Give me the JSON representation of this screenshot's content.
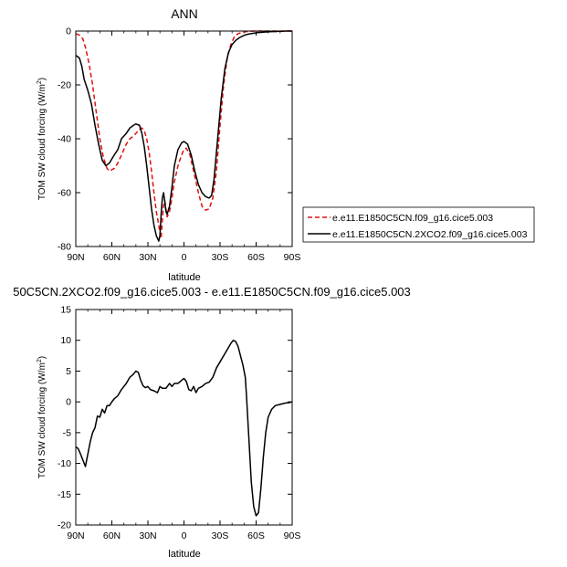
{
  "chart_data": [
    {
      "type": "line",
      "title": "ANN",
      "xlabel": "latitude",
      "ylabel": "TOM SW cloud forcing (W/m",
      "ylabel_sup": "2",
      "ylabel_close": ")",
      "xlim": [
        90,
        -90
      ],
      "ylim": [
        -80,
        0
      ],
      "xticks": [
        90,
        60,
        30,
        0,
        -30,
        -60,
        -90
      ],
      "xtick_labels": [
        "90N",
        "60N",
        "30N",
        "0",
        "30S",
        "60S",
        "90S"
      ],
      "yticks": [
        0,
        -20,
        -40,
        -60,
        -80
      ],
      "ytick_labels": [
        "0",
        "-20",
        "-40",
        "-60",
        "-80"
      ],
      "legend_position": "right",
      "series": [
        {
          "name": "e.e11.E1850C5CN.f09_g16.cice5.003",
          "color": "#e01010",
          "dash": "dashed",
          "points": [
            [
              90,
              -1
            ],
            [
              87,
              -1.5
            ],
            [
              84,
              -3
            ],
            [
              82,
              -6
            ],
            [
              79,
              -12
            ],
            [
              76,
              -20
            ],
            [
              73,
              -30
            ],
            [
              70,
              -40
            ],
            [
              67,
              -47
            ],
            [
              64,
              -51
            ],
            [
              62,
              -52
            ],
            [
              58,
              -51
            ],
            [
              55,
              -49
            ],
            [
              52,
              -46
            ],
            [
              48,
              -42
            ],
            [
              45,
              -40
            ],
            [
              42,
              -39
            ],
            [
              40,
              -38
            ],
            [
              37,
              -36.5
            ],
            [
              35,
              -36
            ],
            [
              33,
              -37
            ],
            [
              31,
              -40
            ],
            [
              29,
              -45
            ],
            [
              27,
              -52
            ],
            [
              25,
              -60
            ],
            [
              23,
              -67
            ],
            [
              21,
              -72
            ],
            [
              20,
              -75
            ],
            [
              19,
              -77
            ],
            [
              18,
              -70
            ],
            [
              17,
              -65
            ],
            [
              16,
              -63
            ],
            [
              15,
              -66
            ],
            [
              14,
              -69
            ],
            [
              12,
              -67
            ],
            [
              10,
              -62
            ],
            [
              8,
              -56
            ],
            [
              5,
              -50
            ],
            [
              2,
              -46
            ],
            [
              0,
              -44
            ],
            [
              -2,
              -43.5
            ],
            [
              -5,
              -46
            ],
            [
              -8,
              -52
            ],
            [
              -12,
              -60
            ],
            [
              -15,
              -65
            ],
            [
              -18,
              -66.5
            ],
            [
              -21,
              -66
            ],
            [
              -24,
              -62
            ],
            [
              -27,
              -52
            ],
            [
              -30,
              -35
            ],
            [
              -33,
              -20
            ],
            [
              -36,
              -10
            ],
            [
              -39,
              -5
            ],
            [
              -42,
              -2
            ],
            [
              -45,
              -1
            ],
            [
              -48,
              -0.5
            ],
            [
              -52,
              -0.2
            ],
            [
              -55,
              -0.1
            ],
            [
              -58,
              0
            ],
            [
              -61,
              0
            ],
            [
              -64,
              0
            ],
            [
              -67,
              0
            ],
            [
              -70,
              0
            ],
            [
              -73,
              0
            ],
            [
              -76,
              0
            ],
            [
              -79,
              0
            ],
            [
              -82,
              0
            ],
            [
              -85,
              0
            ],
            [
              -88,
              0
            ],
            [
              -90,
              0
            ]
          ]
        },
        {
          "name": "e.e11.E1850C5CN.2XCO2.f09_g16.cice5.003",
          "color": "#000000",
          "dash": "solid",
          "points": [
            [
              90,
              -9
            ],
            [
              87,
              -10
            ],
            [
              85,
              -13
            ],
            [
              83,
              -18
            ],
            [
              80,
              -22
            ],
            [
              77,
              -27
            ],
            [
              74,
              -35
            ],
            [
              71,
              -42
            ],
            [
              68,
              -48
            ],
            [
              65,
              -50
            ],
            [
              62,
              -49
            ],
            [
              58,
              -46
            ],
            [
              55,
              -44
            ],
            [
              52,
              -40
            ],
            [
              48,
              -38
            ],
            [
              45,
              -36
            ],
            [
              42,
              -35
            ],
            [
              40,
              -34.5
            ],
            [
              37,
              -35
            ],
            [
              35,
              -38
            ],
            [
              33,
              -43
            ],
            [
              31,
              -50
            ],
            [
              29,
              -58
            ],
            [
              27,
              -66
            ],
            [
              25,
              -72
            ],
            [
              23,
              -76
            ],
            [
              21,
              -78
            ],
            [
              20,
              -76
            ],
            [
              19,
              -68
            ],
            [
              18,
              -62
            ],
            [
              17,
              -60
            ],
            [
              16,
              -63
            ],
            [
              15,
              -67
            ],
            [
              14,
              -68
            ],
            [
              12,
              -65
            ],
            [
              10,
              -58
            ],
            [
              8,
              -50
            ],
            [
              5,
              -44
            ],
            [
              2,
              -41.5
            ],
            [
              0,
              -41
            ],
            [
              -3,
              -42
            ],
            [
              -6,
              -46
            ],
            [
              -9,
              -52
            ],
            [
              -12,
              -57
            ],
            [
              -15,
              -60
            ],
            [
              -18,
              -61.5
            ],
            [
              -21,
              -62
            ],
            [
              -23,
              -61
            ],
            [
              -25,
              -55
            ],
            [
              -28,
              -40
            ],
            [
              -31,
              -25
            ],
            [
              -34,
              -14
            ],
            [
              -37,
              -8
            ],
            [
              -40,
              -5
            ],
            [
              -43,
              -3.5
            ],
            [
              -46,
              -2.5
            ],
            [
              -49,
              -1.8
            ],
            [
              -52,
              -1.3
            ],
            [
              -55,
              -1
            ],
            [
              -58,
              -0.8
            ],
            [
              -61,
              -0.6
            ],
            [
              -64,
              -0.5
            ],
            [
              -67,
              -0.4
            ],
            [
              -70,
              -0.3
            ],
            [
              -73,
              -0.2
            ],
            [
              -76,
              -0.2
            ],
            [
              -79,
              -0.1
            ],
            [
              -82,
              -0.1
            ],
            [
              -85,
              0
            ],
            [
              -90,
              0
            ]
          ]
        }
      ]
    },
    {
      "type": "line",
      "title": "50C5CN.2XCO2.f09_g16.cice5.003 - e.e11.E1850C5CN.f09_g16.cice5.003",
      "xlabel": "latitude",
      "ylabel": "TOM SW cloud forcing (W/m",
      "ylabel_sup": "2",
      "ylabel_close": ")",
      "xlim": [
        90,
        -90
      ],
      "ylim": [
        -20,
        15
      ],
      "xticks": [
        90,
        60,
        30,
        0,
        -30,
        -60,
        -90
      ],
      "xtick_labels": [
        "90N",
        "60N",
        "30N",
        "0",
        "30S",
        "60S",
        "90S"
      ],
      "yticks": [
        15,
        10,
        5,
        0,
        -5,
        -10,
        -15,
        -20
      ],
      "ytick_labels": [
        "15",
        "10",
        "5",
        "0",
        "-5",
        "-10",
        "-15",
        "-20"
      ],
      "series": [
        {
          "name": "",
          "color": "#000000",
          "dash": "solid",
          "points": [
            [
              90,
              -7.3
            ],
            [
              88,
              -7.6
            ],
            [
              86,
              -8.5
            ],
            [
              84,
              -9.5
            ],
            [
              82,
              -10.5
            ],
            [
              80,
              -8.5
            ],
            [
              78,
              -6.5
            ],
            [
              76,
              -5
            ],
            [
              74,
              -4.2
            ],
            [
              72,
              -2.3
            ],
            [
              70,
              -2.5
            ],
            [
              68,
              -1.2
            ],
            [
              66,
              -1.8
            ],
            [
              64,
              -0.6
            ],
            [
              62,
              -0.6
            ],
            [
              60,
              0
            ],
            [
              58,
              0.5
            ],
            [
              55,
              1
            ],
            [
              52,
              2
            ],
            [
              48,
              3
            ],
            [
              45,
              4
            ],
            [
              42,
              4.5
            ],
            [
              40,
              5
            ],
            [
              38,
              4.8
            ],
            [
              36,
              3.5
            ],
            [
              34,
              2.6
            ],
            [
              32,
              2.3
            ],
            [
              30,
              2.5
            ],
            [
              28,
              2
            ],
            [
              25,
              1.8
            ],
            [
              22,
              1.5
            ],
            [
              20,
              2.5
            ],
            [
              18,
              2.2
            ],
            [
              15,
              2.2
            ],
            [
              12,
              3
            ],
            [
              10,
              2.5
            ],
            [
              8,
              3
            ],
            [
              5,
              3
            ],
            [
              2,
              3.5
            ],
            [
              0,
              3.8
            ],
            [
              -2,
              3.3
            ],
            [
              -4,
              2
            ],
            [
              -6,
              1.8
            ],
            [
              -8,
              2.5
            ],
            [
              -10,
              1.5
            ],
            [
              -12,
              2.2
            ],
            [
              -15,
              2.5
            ],
            [
              -18,
              3
            ],
            [
              -21,
              3.2
            ],
            [
              -24,
              4
            ],
            [
              -27,
              5.5
            ],
            [
              -30,
              6.5
            ],
            [
              -33,
              7.5
            ],
            [
              -36,
              8.5
            ],
            [
              -39,
              9.5
            ],
            [
              -41,
              10
            ],
            [
              -43,
              9.8
            ],
            [
              -45,
              9
            ],
            [
              -47,
              7.5
            ],
            [
              -49,
              6
            ],
            [
              -51,
              4
            ],
            [
              -52,
              1
            ],
            [
              -54,
              -6
            ],
            [
              -56,
              -13
            ],
            [
              -58,
              -17
            ],
            [
              -60,
              -18.5
            ],
            [
              -62,
              -18
            ],
            [
              -64,
              -14
            ],
            [
              -66,
              -9
            ],
            [
              -68,
              -5
            ],
            [
              -70,
              -2.5
            ],
            [
              -73,
              -1.2
            ],
            [
              -76,
              -0.6
            ],
            [
              -80,
              -0.4
            ],
            [
              -84,
              -0.2
            ],
            [
              -88,
              -0.1
            ],
            [
              -90,
              0
            ]
          ]
        }
      ]
    }
  ]
}
